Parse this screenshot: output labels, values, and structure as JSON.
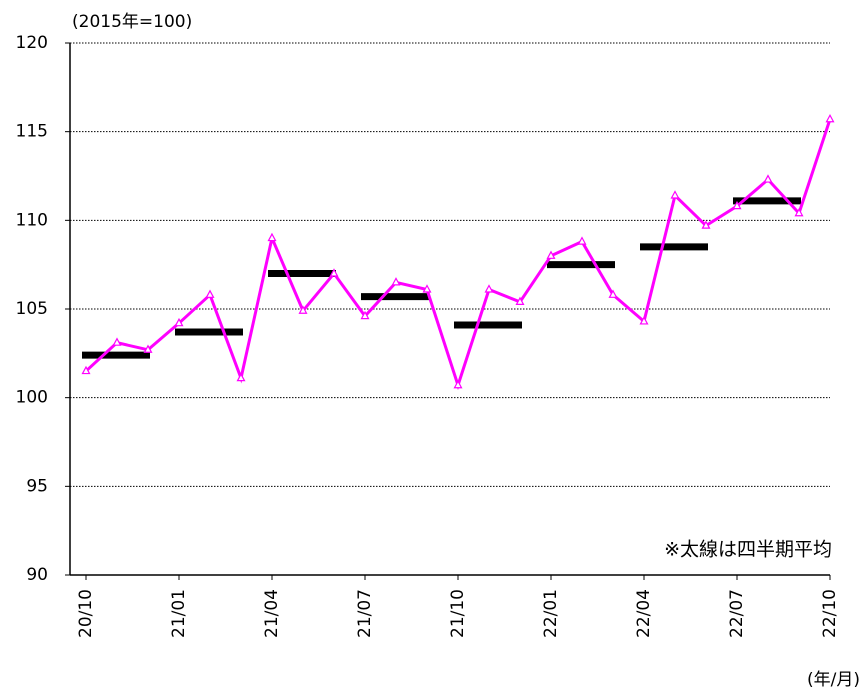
{
  "chart_data": {
    "type": "line",
    "y_label": "(2015年=100)",
    "x_label": "(年/月)",
    "annotation": "※太線は四半期平均",
    "categories": [
      "20/10",
      null,
      null,
      "21/01",
      null,
      null,
      "21/04",
      null,
      null,
      "21/07",
      null,
      null,
      "21/10",
      null,
      null,
      "22/01",
      null,
      null,
      "22/04",
      null,
      null,
      "22/07",
      null,
      null,
      "22/10"
    ],
    "series": [
      {
        "color": "#ff00ff",
        "values": [
          101.5,
          103.1,
          102.7,
          104.2,
          105.8,
          101.1,
          109.0,
          104.9,
          107.0,
          104.6,
          106.5,
          106.1,
          100.7,
          106.1,
          105.4,
          108.0,
          108.8,
          105.8,
          104.3,
          111.4,
          109.7,
          110.8,
          112.3,
          110.4,
          115.7
        ]
      }
    ],
    "quarterly_averages": {
      "color": "#000000",
      "values": [
        102.4,
        103.7,
        107.0,
        105.7,
        104.1,
        107.5,
        108.5,
        111.1
      ]
    },
    "ylim": [
      90,
      120
    ],
    "yticks": [
      90,
      95,
      100,
      105,
      110,
      115,
      120
    ],
    "grid": true
  }
}
